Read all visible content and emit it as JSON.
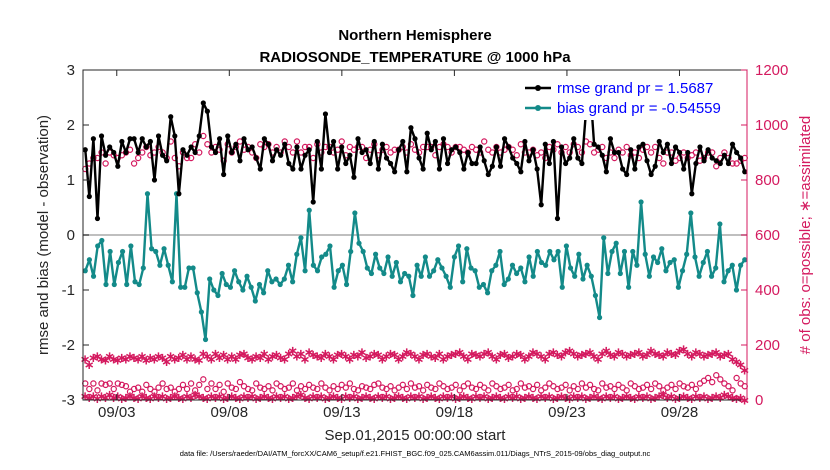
{
  "chart_data": {
    "type": "line",
    "title": "Northern Hemisphere",
    "subtitle": "RADIOSONDE_TEMPERATURE @ 1000 hPa",
    "xlabel": "Sep.01,2015 00:00:00 start",
    "ylabel": "rmse and bias (model - observation)",
    "ylabel_right": "# of obs: o=possible; ∗=assimilated",
    "footer": "data file: /Users/raeder/DAI/ATM_forcXX/CAM6_setup/f.e21.FHIST_BGC.f09_025.CAM6assim.011/Diags_NTrS_2015-09/obs_diag_output.nc",
    "xlim": [
      1.5,
      31.0
    ],
    "ylim": [
      -3,
      3
    ],
    "ylim_right": [
      0,
      1200
    ],
    "x_ticks": [
      3,
      8,
      13,
      18,
      23,
      28
    ],
    "x_tick_labels": [
      "09/03",
      "09/08",
      "09/13",
      "09/18",
      "09/23",
      "09/28"
    ],
    "y_ticks": [
      -3,
      -2,
      -1,
      0,
      1,
      2,
      3
    ],
    "y_tick_labels": [
      "-3",
      "-2",
      "-1",
      "0",
      "1",
      "2",
      "3"
    ],
    "y_ticks_right": [
      0,
      200,
      400,
      600,
      800,
      1000,
      1200
    ],
    "y_tick_labels_right": [
      "0",
      "200",
      "400",
      "600",
      "800",
      "1000",
      "1200"
    ],
    "legend_position": "top-right",
    "colors": {
      "rmse": "#000000",
      "bias": "#138a89",
      "obs": "#d41a5f",
      "zero_line": "#bfbfbf"
    },
    "series": [
      {
        "name": "rmse",
        "legend": "rmse grand pr = 1.5687",
        "axis": "left",
        "values": [
          1.55,
          0.7,
          1.75,
          0.3,
          1.8,
          1.45,
          1.6,
          1.5,
          1.25,
          1.7,
          1.5,
          1.75,
          1.75,
          1.5,
          1.75,
          1.6,
          1.7,
          1.0,
          1.8,
          1.45,
          1.35,
          2.15,
          1.8,
          0.75,
          1.55,
          1.45,
          1.6,
          1.5,
          1.8,
          2.4,
          2.25,
          1.6,
          1.5,
          1.75,
          1.1,
          1.8,
          1.5,
          1.65,
          1.35,
          1.75,
          1.55,
          1.6,
          1.4,
          1.2,
          1.75,
          1.65,
          1.35,
          1.55,
          1.45,
          1.65,
          1.3,
          1.2,
          1.6,
          1.2,
          1.45,
          1.55,
          0.6,
          1.7,
          1.2,
          2.2,
          1.5,
          1.7,
          1.2,
          1.6,
          1.3,
          1.45,
          1.05,
          1.75,
          1.5,
          1.55,
          1.3,
          1.7,
          1.2,
          1.65,
          1.4,
          1.3,
          1.15,
          1.55,
          1.7,
          1.15,
          1.95,
          1.75,
          1.4,
          1.2,
          1.85,
          1.55,
          1.7,
          1.2,
          1.75,
          1.3,
          1.55,
          1.6,
          1.5,
          1.2,
          1.5,
          1.3,
          1.3,
          1.6,
          1.35,
          1.1,
          1.25,
          1.6,
          1.25,
          1.75,
          1.6,
          1.4,
          1.3,
          1.15,
          1.7,
          1.35,
          1.55,
          1.2,
          0.55,
          1.65,
          1.3,
          1.7,
          0.3,
          1.6,
          1.3,
          1.4,
          1.75,
          1.4,
          1.3,
          2.25,
          2.7,
          1.65,
          1.6,
          1.45,
          1.15,
          1.75,
          1.5,
          1.5,
          1.2,
          1.1,
          1.55,
          1.2,
          1.6,
          1.65,
          1.35,
          1.1,
          1.25,
          1.7,
          1.5,
          1.65,
          1.3,
          1.6,
          1.5,
          1.2,
          1.5,
          0.75,
          1.3,
          1.6,
          1.35,
          1.55,
          1.4,
          1.35,
          1.3,
          1.45,
          1.3,
          1.65,
          1.5,
          1.4,
          1.15
        ]
      },
      {
        "name": "bias",
        "legend": "bias grand pr = -0.54559",
        "axis": "left",
        "values": [
          -0.65,
          -0.45,
          -0.75,
          -0.2,
          -0.1,
          -0.9,
          -0.3,
          -0.9,
          -0.5,
          -0.3,
          -0.9,
          -0.2,
          -0.85,
          -0.9,
          -0.6,
          0.75,
          -0.25,
          -0.3,
          -0.55,
          -0.25,
          -0.55,
          -0.85,
          0.75,
          -0.95,
          -0.95,
          -0.6,
          -0.6,
          -1.05,
          -1.4,
          -1.9,
          -0.8,
          -1.0,
          -1.1,
          -0.7,
          -0.9,
          -0.95,
          -0.65,
          -0.85,
          -1.0,
          -0.75,
          -0.95,
          -1.2,
          -0.9,
          -1.05,
          -0.65,
          -0.85,
          -0.8,
          -0.9,
          -0.8,
          -0.55,
          -0.85,
          -0.35,
          -0.05,
          -0.65,
          0.45,
          -0.55,
          -0.65,
          -0.4,
          -0.35,
          -0.2,
          -0.95,
          -0.65,
          -0.55,
          -0.9,
          -0.3,
          0.4,
          -0.15,
          -0.3,
          -0.6,
          -0.7,
          -0.35,
          -0.6,
          -0.7,
          -0.4,
          -0.75,
          -0.5,
          -0.85,
          -0.7,
          -0.75,
          -1.1,
          -0.55,
          -0.75,
          -0.4,
          -0.75,
          -0.65,
          -0.45,
          -0.6,
          -0.75,
          -0.95,
          -0.4,
          -0.2,
          -0.85,
          -0.25,
          -0.6,
          -0.65,
          -0.95,
          -0.9,
          -1.05,
          -0.65,
          -0.55,
          -0.3,
          -0.9,
          -0.8,
          -0.55,
          -0.7,
          -0.6,
          -0.85,
          -0.4,
          -0.75,
          -0.3,
          -0.5,
          -0.55,
          -0.3,
          -0.45,
          -0.3,
          -0.95,
          -0.2,
          -0.6,
          -0.75,
          -0.35,
          -0.8,
          -0.55,
          -0.75,
          -1.1,
          -1.5,
          -0.05,
          -0.7,
          -0.3,
          -0.15,
          -0.7,
          -0.3,
          -0.95,
          -0.3,
          -0.55,
          0.6,
          -0.35,
          -0.75,
          -0.4,
          -0.5,
          -0.25,
          -0.65,
          -0.5,
          -0.45,
          -0.95,
          -0.65,
          -0.35,
          0.4,
          -0.4,
          -0.75,
          -0.5,
          -0.3,
          -0.75,
          -0.6,
          0.2,
          -0.85,
          -0.65,
          -0.55,
          -1.0,
          -0.55,
          -0.45
        ]
      },
      {
        "name": "possible",
        "axis": "right",
        "marker": "o",
        "values": [
          840,
          860,
          880,
          880,
          900,
          860,
          900,
          890,
          880,
          890,
          900,
          910,
          860,
          880,
          900,
          920,
          890,
          900,
          920,
          900,
          880,
          940,
          880,
          850,
          900,
          880,
          880,
          930,
          900,
          960,
          930,
          900,
          920,
          910,
          870,
          930,
          900,
          920,
          940,
          910,
          920,
          900,
          880,
          930,
          920,
          930,
          900,
          920,
          900,
          940,
          920,
          900,
          940,
          900,
          920,
          920,
          880,
          930,
          900,
          920,
          920,
          900,
          910,
          940,
          890,
          920,
          910,
          920,
          920,
          880,
          910,
          930,
          890,
          910,
          920,
          900,
          910,
          910,
          920,
          900,
          930,
          910,
          900,
          920,
          920,
          920,
          890,
          920,
          930,
          920,
          900,
          920,
          920,
          910,
          900,
          920,
          910,
          900,
          940,
          910,
          900,
          920,
          900,
          910,
          920,
          910,
          890,
          930,
          900,
          900,
          910,
          890,
          900,
          880,
          920,
          910,
          930,
          900,
          920,
          900,
          930,
          920,
          900,
          940,
          930,
          900,
          910,
          920,
          880,
          900,
          880,
          910,
          900,
          920,
          890,
          900,
          880,
          910,
          920,
          900,
          920,
          880,
          860,
          900,
          900,
          870,
          880,
          900,
          880,
          890,
          900,
          870,
          880,
          900,
          900,
          850,
          880,
          900,
          880,
          860,
          860,
          870,
          880
        ]
      },
      {
        "name": "assimilated",
        "axis": "right",
        "marker": "*",
        "values": [
          150,
          130,
          155,
          160,
          150,
          145,
          160,
          150,
          145,
          155,
          150,
          160,
          155,
          150,
          160,
          145,
          155,
          150,
          160,
          155,
          140,
          160,
          150,
          155,
          165,
          150,
          160,
          150,
          145,
          170,
          160,
          150,
          170,
          155,
          165,
          150,
          160,
          150,
          165,
          170,
          155,
          150,
          160,
          155,
          170,
          150,
          160,
          165,
          155,
          150,
          170,
          180,
          160,
          170,
          150,
          175,
          165,
          160,
          155,
          170,
          160,
          150,
          165,
          170,
          160,
          150,
          165,
          160,
          175,
          155,
          160,
          170,
          165,
          150,
          160,
          170,
          165,
          150,
          160,
          175,
          170,
          160,
          150,
          165,
          170,
          160,
          155,
          170,
          150,
          160,
          165,
          170,
          175,
          160,
          150,
          170,
          165,
          160,
          170,
          175,
          160,
          150,
          165,
          170,
          155,
          160,
          170,
          165,
          150,
          160,
          175,
          170,
          160,
          150,
          170,
          175,
          165,
          160,
          175,
          180,
          170,
          160,
          165,
          170,
          175,
          160,
          150,
          170,
          180,
          165,
          160,
          175,
          170,
          160,
          165,
          170,
          175,
          160,
          165,
          180,
          170,
          165,
          160,
          175,
          170,
          165,
          180,
          185,
          170,
          160,
          175,
          170,
          160,
          165,
          170,
          175,
          160,
          165,
          170,
          150,
          140,
          130,
          110
        ]
      },
      {
        "name": "possible_low",
        "axis": "right",
        "marker": "o",
        "values": [
          60,
          40,
          60,
          35,
          60,
          55,
          60,
          40,
          60,
          55,
          50,
          30,
          40,
          45,
          30,
          55,
          40,
          30,
          45,
          60,
          40,
          45,
          30,
          40,
          55,
          40,
          60,
          35,
          55,
          75,
          40,
          60,
          40,
          55,
          30,
          60,
          45,
          40,
          65,
          50,
          40,
          35,
          60,
          45,
          40,
          50,
          35,
          60,
          50,
          40,
          45,
          60,
          35,
          50,
          40,
          55,
          45,
          40,
          60,
          45,
          35,
          50,
          40,
          55,
          45,
          60,
          40,
          35,
          50,
          45,
          40,
          55,
          60,
          45,
          40,
          50,
          35,
          45,
          55,
          40,
          60,
          45,
          50,
          35,
          55,
          45,
          40,
          60,
          50,
          40,
          45,
          55,
          35,
          50,
          60,
          45,
          40,
          55,
          45,
          35,
          60,
          50,
          40,
          45,
          55,
          35,
          40,
          60,
          45,
          50,
          40,
          55,
          35,
          45,
          60,
          50,
          40,
          45,
          55,
          35,
          50,
          40,
          60,
          45,
          55,
          40,
          35,
          60,
          45,
          50,
          40,
          55,
          45,
          35,
          60,
          50,
          40,
          45,
          55,
          40,
          60,
          50,
          35,
          45,
          55,
          40,
          60,
          50,
          45,
          55,
          40,
          60,
          70,
          80,
          65,
          90,
          75,
          60,
          50,
          35,
          80,
          60,
          50
        ]
      },
      {
        "name": "assimilated_low",
        "axis": "right",
        "marker": "*",
        "values": [
          15,
          10,
          15,
          5,
          15,
          10,
          20,
          10,
          15,
          5,
          10,
          15,
          10,
          5,
          15,
          10,
          5,
          15,
          10,
          15,
          5,
          10,
          15,
          10,
          5,
          15,
          10,
          20,
          15,
          10,
          5,
          15,
          10,
          15,
          5,
          10,
          15,
          10,
          5,
          15,
          10,
          15,
          5,
          10,
          15,
          10,
          5,
          15,
          10,
          15,
          5,
          10,
          15,
          20,
          10,
          5,
          15,
          10,
          15,
          5,
          10,
          15,
          10,
          5,
          15,
          10,
          15,
          5,
          10,
          15,
          10,
          5,
          15,
          10,
          15,
          5,
          10,
          15,
          10,
          5,
          15,
          10,
          15,
          5,
          10,
          15,
          10,
          5,
          15,
          10,
          15,
          5,
          10,
          15,
          10,
          5,
          15,
          10,
          15,
          5,
          10,
          15,
          10,
          5,
          15,
          10,
          15,
          5,
          10,
          15,
          10,
          5,
          15,
          10,
          15,
          5,
          10,
          15,
          10,
          5,
          15,
          10,
          15,
          5,
          10,
          15,
          10,
          5,
          15,
          10,
          15,
          5,
          10,
          15,
          10,
          5,
          15,
          10,
          15,
          5,
          10,
          15,
          20,
          10,
          15,
          5,
          10,
          15,
          10,
          5,
          15,
          10,
          15,
          5,
          10,
          15,
          10,
          20,
          15,
          10,
          5,
          10,
          0
        ]
      }
    ]
  }
}
